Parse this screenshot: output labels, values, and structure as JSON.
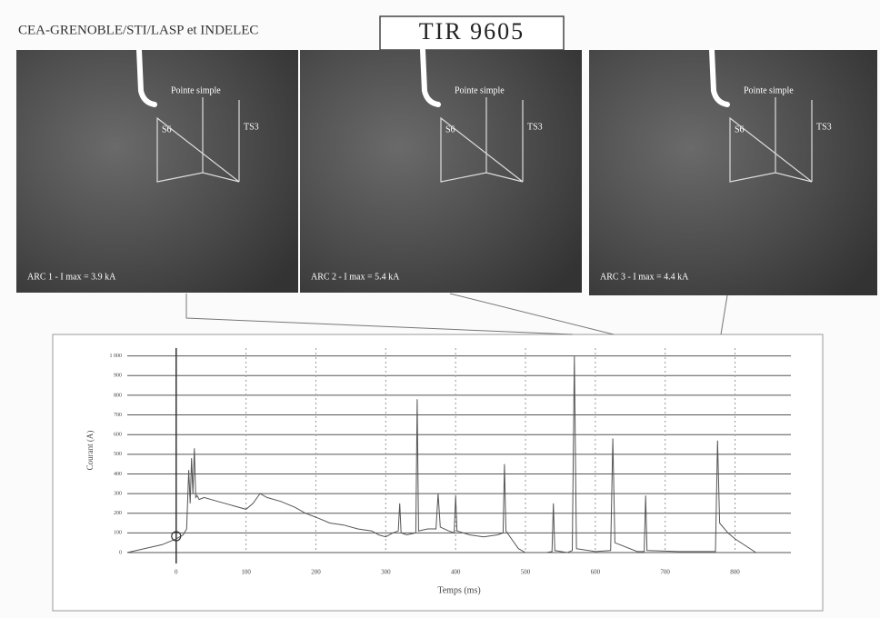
{
  "header": {
    "org": "CEA-GRENOBLE/STI/LASP et INDELEC",
    "title": "TIR 9605"
  },
  "photos": [
    {
      "pointe": "Pointe simple",
      "s6": "S6",
      "ts3": "TS3",
      "label": "ARC 1 - I max = 3.9 kA"
    },
    {
      "pointe": "Pointe simple",
      "s6": "S6",
      "ts3": "TS3",
      "label": "ARC 2 - I max = 5.4 kA"
    },
    {
      "pointe": "Pointe simple",
      "s6": "S6",
      "ts3": "TS3",
      "label": "ARC 3 - I max = 4.4 kA"
    }
  ],
  "chart_data": {
    "type": "line",
    "xlabel": "Temps (ms)",
    "ylabel": "Courant (A)",
    "color": "#555555",
    "grid": true,
    "x": [
      -70,
      -20,
      0,
      10,
      15,
      18,
      20,
      22,
      24,
      26,
      28,
      30,
      33,
      40,
      60,
      80,
      100,
      110,
      120,
      130,
      150,
      170,
      185,
      200,
      220,
      240,
      260,
      280,
      290,
      300,
      310,
      318,
      320,
      322,
      330,
      343,
      345,
      347,
      360,
      372,
      375,
      378,
      390,
      398,
      400,
      402,
      420,
      440,
      460,
      468,
      470,
      472,
      480,
      490,
      500,
      530,
      538,
      540,
      542,
      560,
      567,
      570,
      573,
      600,
      622,
      625,
      628,
      660,
      670,
      672,
      674,
      720,
      772,
      775,
      778,
      790,
      800,
      830,
      880
    ],
    "values": [
      0,
      40,
      70,
      90,
      120,
      420,
      250,
      480,
      300,
      530,
      280,
      290,
      270,
      280,
      260,
      240,
      220,
      250,
      300,
      280,
      260,
      230,
      200,
      180,
      150,
      140,
      120,
      110,
      90,
      80,
      100,
      110,
      250,
      100,
      90,
      100,
      780,
      110,
      120,
      120,
      300,
      130,
      110,
      100,
      290,
      110,
      90,
      80,
      90,
      100,
      450,
      110,
      70,
      20,
      0,
      0,
      5,
      250,
      10,
      0,
      10,
      1000,
      20,
      5,
      10,
      580,
      50,
      5,
      5,
      290,
      10,
      5,
      5,
      570,
      150,
      100,
      70,
      0,
      0
    ],
    "xlim": [
      -70,
      880
    ],
    "ylim": [
      0,
      1040
    ],
    "xticks": [
      0,
      100,
      200,
      300,
      400,
      500,
      600,
      700,
      800
    ],
    "yticks": [
      0,
      100,
      200,
      300,
      400,
      500,
      600,
      700,
      800,
      900,
      {
        "value": 1000,
        "label": "1 000"
      }
    ]
  }
}
